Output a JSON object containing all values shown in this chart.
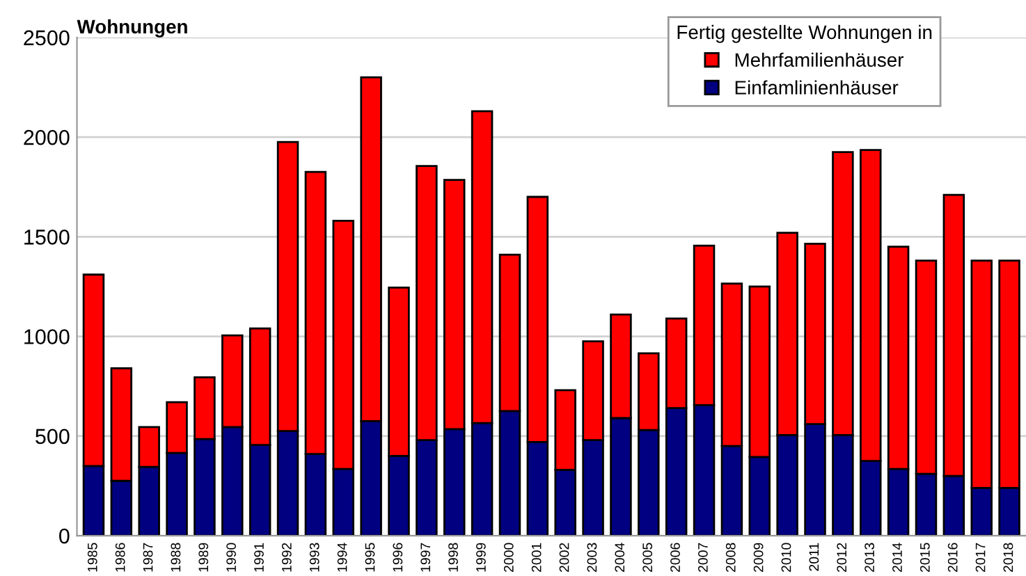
{
  "chart_data": {
    "type": "bar",
    "stacked": true,
    "ylabel": "Wohnungen",
    "legend_title": "Fertig gestellte Wohnungen in",
    "legend": "top right",
    "grid": "y",
    "categories": [
      "1985",
      "1986",
      "1987",
      "1988",
      "1989",
      "1990",
      "1991",
      "1992",
      "1993",
      "1994",
      "1995",
      "1996",
      "1997",
      "1998",
      "1999",
      "2000",
      "2001",
      "2002",
      "2003",
      "2004",
      "2005",
      "2006",
      "2007",
      "2008",
      "2009",
      "2010",
      "2011",
      "2012",
      "2013",
      "2014",
      "2015",
      "2016",
      "2017",
      "2018"
    ],
    "series": [
      {
        "name": "Einfamlinienhäuser",
        "color": "#000080",
        "values": [
          350,
          275,
          345,
          415,
          485,
          545,
          455,
          525,
          410,
          335,
          575,
          400,
          480,
          535,
          565,
          625,
          470,
          330,
          480,
          590,
          530,
          640,
          655,
          450,
          395,
          505,
          560,
          505,
          375,
          335,
          310,
          300,
          240,
          240
        ]
      },
      {
        "name": "Mehrfamilienhäuser",
        "color": "#ff0000",
        "values": [
          960,
          565,
          200,
          255,
          310,
          460,
          585,
          1450,
          1415,
          1245,
          1725,
          845,
          1375,
          1250,
          1565,
          785,
          1230,
          400,
          495,
          520,
          385,
          450,
          800,
          815,
          855,
          1015,
          905,
          1420,
          1560,
          1115,
          1070,
          1410,
          1140,
          1140
        ]
      }
    ],
    "ylim": [
      0,
      2500
    ],
    "yticks": [
      0,
      500,
      1000,
      1500,
      2000,
      2500
    ]
  }
}
